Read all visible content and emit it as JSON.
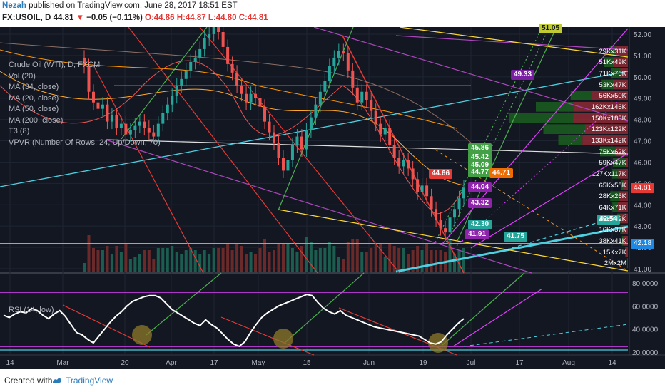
{
  "header": {
    "author": "Nezah",
    "published_text": "published on TradingView.com, June 28, 2017 18:51 EST",
    "symbol": "FX:USOIL, D",
    "last_price": "44.81",
    "change_arrow": "▼",
    "change": "−0.05 (−0.11%)",
    "ohlc": "O:44.86 H:44.87 L:44.80 C:44.81"
  },
  "legend": {
    "title": "Crude Oil (WTI), D, FXCM",
    "items": [
      "Vol (20)",
      "MA (34, close)",
      "MA (20, close)",
      "MA (50, close)",
      "MA (200, close)",
      "T3 (8)",
      "VPVR (Number Of Rows, 24, Up/Down, 70)"
    ]
  },
  "rsi_legend": "RSI (14, low)",
  "footer": {
    "created_with": "Created with",
    "brand": "TradingView"
  },
  "colors": {
    "up": "#26a69a",
    "down": "#ef5350",
    "bg": "#131722",
    "rsi_line": "#ffffff",
    "magenta": "#e040fb",
    "cyan": "#4dd0e1"
  },
  "chart_data": [
    {
      "type": "candlestick",
      "title": "Crude Oil (WTI), D, FXCM",
      "x_tick_labels": [
        "14",
        "Mar",
        "20",
        "Apr",
        "17",
        "May",
        "15",
        "Jun",
        "19",
        "Jul",
        "17",
        "Aug",
        "14"
      ],
      "y_tick_labels": [
        "52.00",
        "51.00",
        "50.00",
        "49.00",
        "48.00",
        "47.00",
        "46.00",
        "45.00",
        "44.00",
        "43.00",
        "42.00",
        "41.00"
      ],
      "ylim": [
        41,
        52
      ],
      "last_price_label": "44.81",
      "extra_price_label": "42.18",
      "closes": [
        50.5,
        49.3,
        48.8,
        48.5,
        48.7,
        47.9,
        48.2,
        47.6,
        47.8,
        47.3,
        47.5,
        47.7,
        47.9,
        47.6,
        47.4,
        47.2,
        47.8,
        48.3,
        48.7,
        49.1,
        49.6,
        49.9,
        50.3,
        50.7,
        50.9,
        51.3,
        51.8,
        52.0,
        52.4,
        52.1,
        51.4,
        50.6,
        50.2,
        49.6,
        49.2,
        48.8,
        49.2,
        49.0,
        48.6,
        47.9,
        47.4,
        46.9,
        46.2,
        45.6,
        46.1,
        46.8,
        47.2,
        46.6,
        47.5,
        48.1,
        48.7,
        49.3,
        49.8,
        50.5,
        50.9,
        51.2,
        51.1,
        50.3,
        49.5,
        48.8,
        49.3,
        48.9,
        48.4,
        47.8,
        47.3,
        47.6,
        46.8,
        46.2,
        45.8,
        46.1,
        45.7,
        45.2,
        44.6,
        44.9,
        44.4,
        43.8,
        43.3,
        42.9,
        42.7,
        43.4,
        43.8,
        44.3,
        44.8
      ],
      "annotations": [
        "51.05",
        "49.33",
        "45.86",
        "45.42",
        "45.09",
        "44.77",
        "44.66",
        "44.71",
        "44.04",
        "43.32",
        "42.30",
        "41.91",
        "41.75",
        "42.54"
      ]
    },
    {
      "type": "bar",
      "title": "VPVR (Number Of Rows, 24, Up/Down, 70)",
      "categories": [
        "51.5-52",
        "51-51.5",
        "50.5-51",
        "50-50.5",
        "49.5-50",
        "49-49.5",
        "48.5-49",
        "48-48.5",
        "47.5-48",
        "47-47.5",
        "46.5-47",
        "46-46.5",
        "45.5-46",
        "45-45.5",
        "44.5-45",
        "44-44.5",
        "43.5-44",
        "43-43.5",
        "42.5-43",
        "42-42.5",
        "41.5-42"
      ],
      "series": [
        {
          "name": "Up",
          "values": [
            null,
            12,
            16,
            17,
            21,
            40,
            72,
            120,
            78,
            45,
            30,
            24,
            11,
            5,
            17,
            10,
            6,
            4,
            3,
            1.5,
            0.6
          ]
        },
        {
          "name": "Down",
          "values": [
            null,
            22,
            28,
            14,
            28,
            67,
            100,
            102,
            80,
            85,
            22,
            4,
            18,
            7,
            16,
            19,
            14,
            10,
            8,
            3.5,
            0.9
          ]
        }
      ],
      "labels": [
        "29Kx31K",
        "51Kx49K",
        "71Kx76K",
        "53Kx47K",
        "56Kx50K",
        "162Kx146K",
        "150Kx183K",
        "123Kx122K",
        "133Kx142K",
        "75Kx62K",
        "59Kx47K",
        "127Kx117K",
        "65Kx58K",
        "28Kx26K",
        "64Kx71K",
        "25Kx42K",
        "16Kx37K",
        "38Kx41K",
        "15Kx7K",
        "2Mx2M"
      ]
    },
    {
      "type": "line",
      "title": "RSI (14, low)",
      "y_tick_labels": [
        "80.0000",
        "60.0000",
        "40.0000",
        "20.0000"
      ],
      "ylim": [
        20,
        80
      ],
      "values": [
        52,
        50,
        53,
        55,
        54,
        58,
        56,
        52,
        49,
        53,
        56,
        51,
        44,
        37,
        35,
        31,
        28,
        34,
        40,
        46,
        51,
        55,
        60,
        64,
        66,
        68,
        69,
        69,
        67,
        62,
        57,
        54,
        51,
        48,
        45,
        43,
        48,
        44,
        41,
        36,
        31,
        27,
        25,
        29,
        37,
        44,
        50,
        54,
        57,
        60,
        62,
        64,
        66,
        68,
        70,
        69,
        63,
        58,
        55,
        53,
        56,
        52,
        50,
        48,
        46,
        44,
        42,
        41,
        40,
        39,
        38,
        37,
        36,
        35,
        34,
        31,
        28,
        27,
        29,
        35,
        40,
        45,
        49
      ]
    }
  ]
}
